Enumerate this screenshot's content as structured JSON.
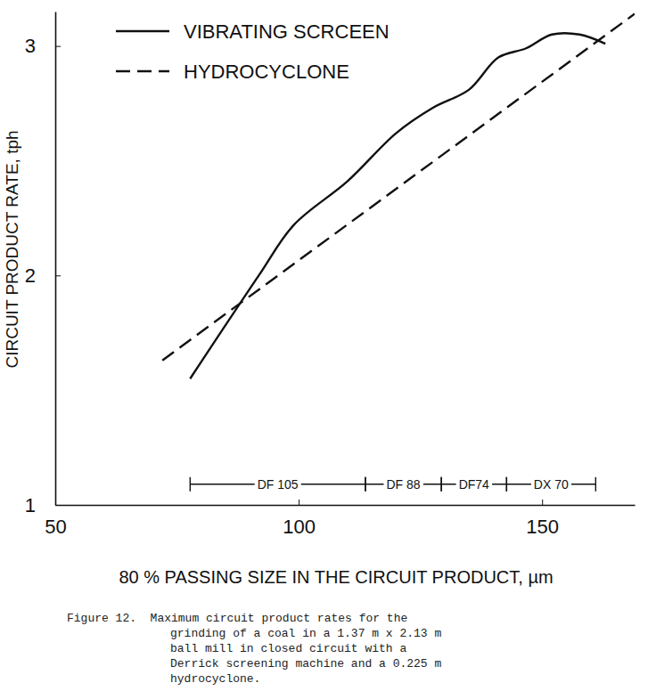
{
  "chart_data": {
    "type": "line",
    "x_label": "80 % PASSING SIZE IN THE CIRCUIT PRODUCT, µm",
    "y_label": "CIRCUIT PRODUCT RATE, tph",
    "xlim": [
      50,
      169
    ],
    "ylim": [
      1,
      3.15
    ],
    "xticks": [
      50,
      100,
      150
    ],
    "yticks": [
      1,
      2,
      3
    ],
    "grid": false,
    "legend": "upper left",
    "series": [
      {
        "name": "VIBRATING SCRCEEN",
        "color": "#111111",
        "line_style": "solid",
        "x": [
          77.7,
          91.8,
          99,
          110,
          120,
          127.5,
          135,
          141,
          146.7,
          152,
          157.7,
          163
        ],
        "values": [
          1.55,
          2.0,
          2.22,
          2.41,
          2.62,
          2.73,
          2.81,
          2.95,
          2.99,
          3.05,
          3.05,
          3.01
        ]
      },
      {
        "name": "HYDROCYCLONE",
        "color": "#111111",
        "line_style": "dashed",
        "x": [
          72,
          169
        ],
        "values": [
          1.63,
          3.14
        ]
      }
    ],
    "annotations": [
      {
        "text": "DF 105",
        "x": [
          77.7,
          113.7
        ],
        "y": 1.09
      },
      {
        "text": "DF 88",
        "x": [
          113.7,
          129.3
        ],
        "y": 1.09
      },
      {
        "text": "DF74",
        "x": [
          129.3,
          142.7
        ],
        "y": 1.09
      },
      {
        "text": "DX 70",
        "x": [
          142.7,
          161
        ],
        "y": 1.09
      }
    ],
    "caption": [
      "Figure 12.  Maximum circuit product rates for the",
      "grinding of a coal in a 1.37 m x 2.13 m",
      "ball mill in closed circuit with a",
      "Derrick screening machine and a 0.225 m",
      "hydrocyclone."
    ]
  }
}
